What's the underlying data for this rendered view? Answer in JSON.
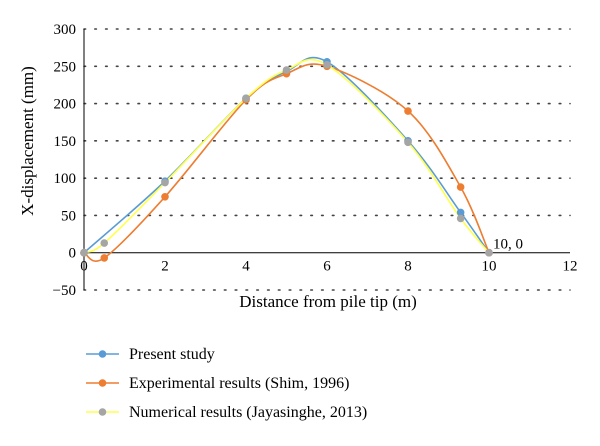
{
  "chart_data": {
    "type": "scatter",
    "title": "",
    "xlabel": "Distance from pile tip (m)",
    "ylabel": "X-displacement (mm)",
    "xlim": [
      0,
      12
    ],
    "ylim": [
      -50,
      300
    ],
    "x_ticks": [
      0,
      2,
      4,
      6,
      8,
      10,
      12
    ],
    "y_ticks": [
      -50,
      0,
      50,
      100,
      150,
      200,
      250,
      300
    ],
    "grid": "horizontal dotted",
    "legend_position": "bottom",
    "smooth_lines": true,
    "series": [
      {
        "name": "Present study",
        "color": "#5b9bd5",
        "points": [
          [
            0,
            0
          ],
          [
            2,
            96
          ],
          [
            4,
            207
          ],
          [
            5,
            243
          ],
          [
            6,
            256
          ],
          [
            8,
            150
          ],
          [
            9.3,
            54
          ],
          [
            10,
            0
          ]
        ]
      },
      {
        "name": "Experimental results (Shim, 1996)",
        "color": "#ed7d31",
        "points": [
          [
            0,
            0
          ],
          [
            0.5,
            -7
          ],
          [
            2,
            75
          ],
          [
            4,
            205
          ],
          [
            5,
            240
          ],
          [
            6,
            250
          ],
          [
            8,
            190
          ],
          [
            9.3,
            88
          ],
          [
            10,
            0
          ]
        ]
      },
      {
        "name": "Numerical results (Jayasinghe, 2013)",
        "color": "#a5a5a5",
        "line_color": "#ffff4d",
        "points": [
          [
            0,
            0
          ],
          [
            0.5,
            13
          ],
          [
            2,
            94
          ],
          [
            4,
            207
          ],
          [
            5,
            245
          ],
          [
            6,
            252
          ],
          [
            8,
            148
          ],
          [
            9.3,
            46
          ],
          [
            10,
            0
          ]
        ]
      }
    ],
    "annotations": [
      {
        "text": "10, 0",
        "x": 10,
        "y": 0
      }
    ]
  }
}
